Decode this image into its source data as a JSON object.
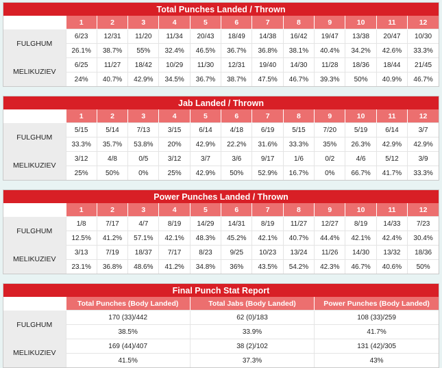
{
  "rounds": [
    "1",
    "2",
    "3",
    "4",
    "5",
    "6",
    "7",
    "8",
    "9",
    "10",
    "11",
    "12"
  ],
  "total": {
    "title": "Total Punches Landed / Thrown",
    "fighters": [
      {
        "name": "FULGHUM",
        "landed": [
          "6/23",
          "12/31",
          "11/20",
          "11/34",
          "20/43",
          "18/49",
          "14/38",
          "16/42",
          "19/47",
          "13/38",
          "20/47",
          "10/30"
        ],
        "pct": [
          "26.1%",
          "38.7%",
          "55%",
          "32.4%",
          "46.5%",
          "36.7%",
          "36.8%",
          "38.1%",
          "40.4%",
          "34.2%",
          "42.6%",
          "33.3%"
        ]
      },
      {
        "name": "MELIKUZIEV",
        "landed": [
          "6/25",
          "11/27",
          "18/42",
          "10/29",
          "11/30",
          "12/31",
          "19/40",
          "14/30",
          "11/28",
          "18/36",
          "18/44",
          "21/45"
        ],
        "pct": [
          "24%",
          "40.7%",
          "42.9%",
          "34.5%",
          "36.7%",
          "38.7%",
          "47.5%",
          "46.7%",
          "39.3%",
          "50%",
          "40.9%",
          "46.7%"
        ]
      }
    ]
  },
  "jab": {
    "title": "Jab Landed / Thrown",
    "fighters": [
      {
        "name": "FULGHUM",
        "landed": [
          "5/15",
          "5/14",
          "7/13",
          "3/15",
          "6/14",
          "4/18",
          "6/19",
          "5/15",
          "7/20",
          "5/19",
          "6/14",
          "3/7"
        ],
        "pct": [
          "33.3%",
          "35.7%",
          "53.8%",
          "20%",
          "42.9%",
          "22.2%",
          "31.6%",
          "33.3%",
          "35%",
          "26.3%",
          "42.9%",
          "42.9%"
        ]
      },
      {
        "name": "MELIKUZIEV",
        "landed": [
          "3/12",
          "4/8",
          "0/5",
          "3/12",
          "3/7",
          "3/6",
          "9/17",
          "1/6",
          "0/2",
          "4/6",
          "5/12",
          "3/9"
        ],
        "pct": [
          "25%",
          "50%",
          "0%",
          "25%",
          "42.9%",
          "50%",
          "52.9%",
          "16.7%",
          "0%",
          "66.7%",
          "41.7%",
          "33.3%"
        ]
      }
    ]
  },
  "power": {
    "title": "Power Punches Landed / Thrown",
    "fighters": [
      {
        "name": "FULGHUM",
        "landed": [
          "1/8",
          "7/17",
          "4/7",
          "8/19",
          "14/29",
          "14/31",
          "8/19",
          "11/27",
          "12/27",
          "8/19",
          "14/33",
          "7/23"
        ],
        "pct": [
          "12.5%",
          "41.2%",
          "57.1%",
          "42.1%",
          "48.3%",
          "45.2%",
          "42.1%",
          "40.7%",
          "44.4%",
          "42.1%",
          "42.4%",
          "30.4%"
        ]
      },
      {
        "name": "MELIKUZIEV",
        "landed": [
          "3/13",
          "7/19",
          "18/37",
          "7/17",
          "8/23",
          "9/25",
          "10/23",
          "13/24",
          "11/26",
          "14/30",
          "13/32",
          "18/36"
        ],
        "pct": [
          "23.1%",
          "36.8%",
          "48.6%",
          "41.2%",
          "34.8%",
          "36%",
          "43.5%",
          "54.2%",
          "42.3%",
          "46.7%",
          "40.6%",
          "50%"
        ]
      }
    ]
  },
  "final": {
    "title": "Final Punch Stat Report",
    "headers": [
      "Total Punches (Body Landed)",
      "Total Jabs (Body Landed)",
      "Power Punches (Body Landed)"
    ],
    "fighters": [
      {
        "name": "FULGHUM",
        "values": [
          "170 (33)/442",
          "62 (0)/183",
          "108 (33)/259"
        ],
        "pct": [
          "38.5%",
          "33.9%",
          "41.7%"
        ]
      },
      {
        "name": "MELIKUZIEV",
        "values": [
          "169 (44)/407",
          "38 (2)/102",
          "131 (42)/305"
        ],
        "pct": [
          "41.5%",
          "37.3%",
          "43%"
        ]
      }
    ]
  }
}
